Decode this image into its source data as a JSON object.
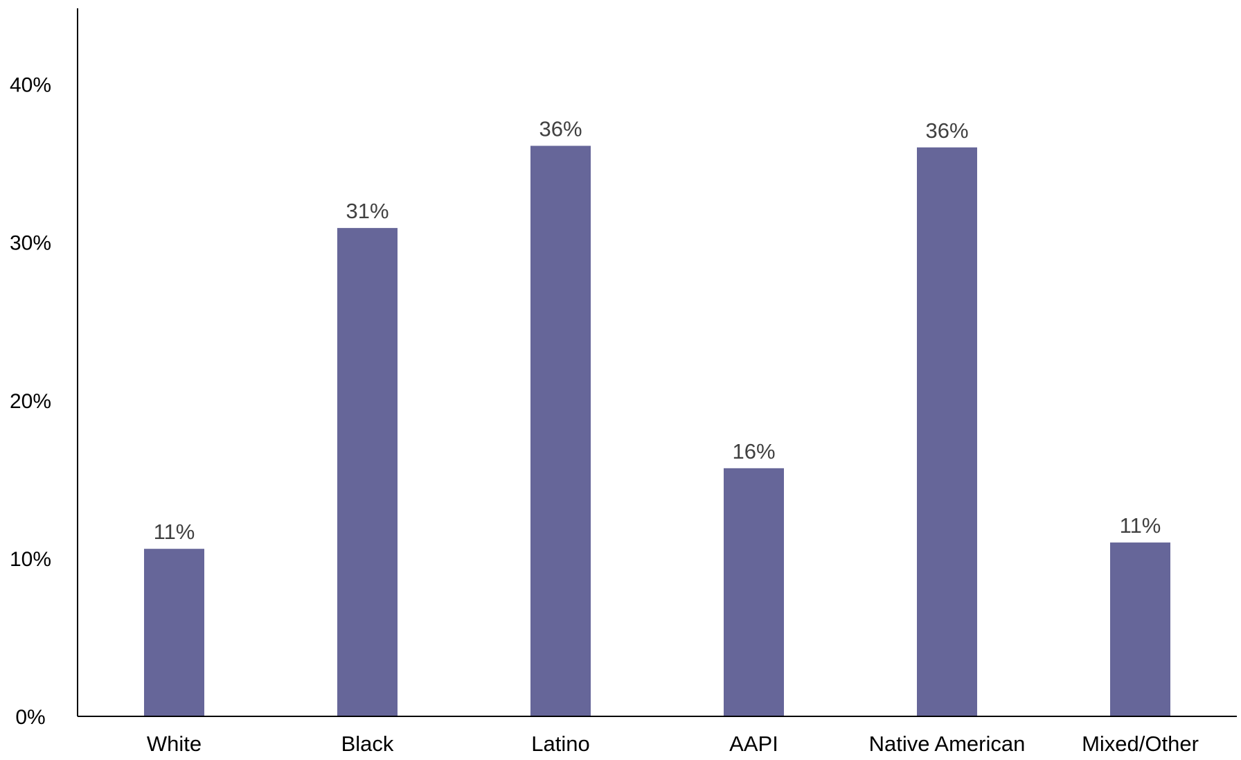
{
  "chart_data": {
    "type": "bar",
    "categories": [
      "White",
      "Black",
      "Latino",
      "AAPI",
      "Native American",
      "Mixed/Other"
    ],
    "values": [
      10.6,
      30.9,
      36.1,
      15.7,
      36.0,
      11.0
    ],
    "data_labels": [
      "11%",
      "31%",
      "36%",
      "16%",
      "36%",
      "11%"
    ],
    "y_ticks": [
      0,
      10,
      20,
      30,
      40
    ],
    "y_tick_labels": [
      "0%",
      "10%",
      "20%",
      "30%",
      "40%"
    ],
    "ylim": [
      0,
      44.8
    ],
    "grid": false,
    "legend": "none",
    "bar_color": "#666699",
    "axis_color": "#000000",
    "data_label_color": "#404040"
  }
}
